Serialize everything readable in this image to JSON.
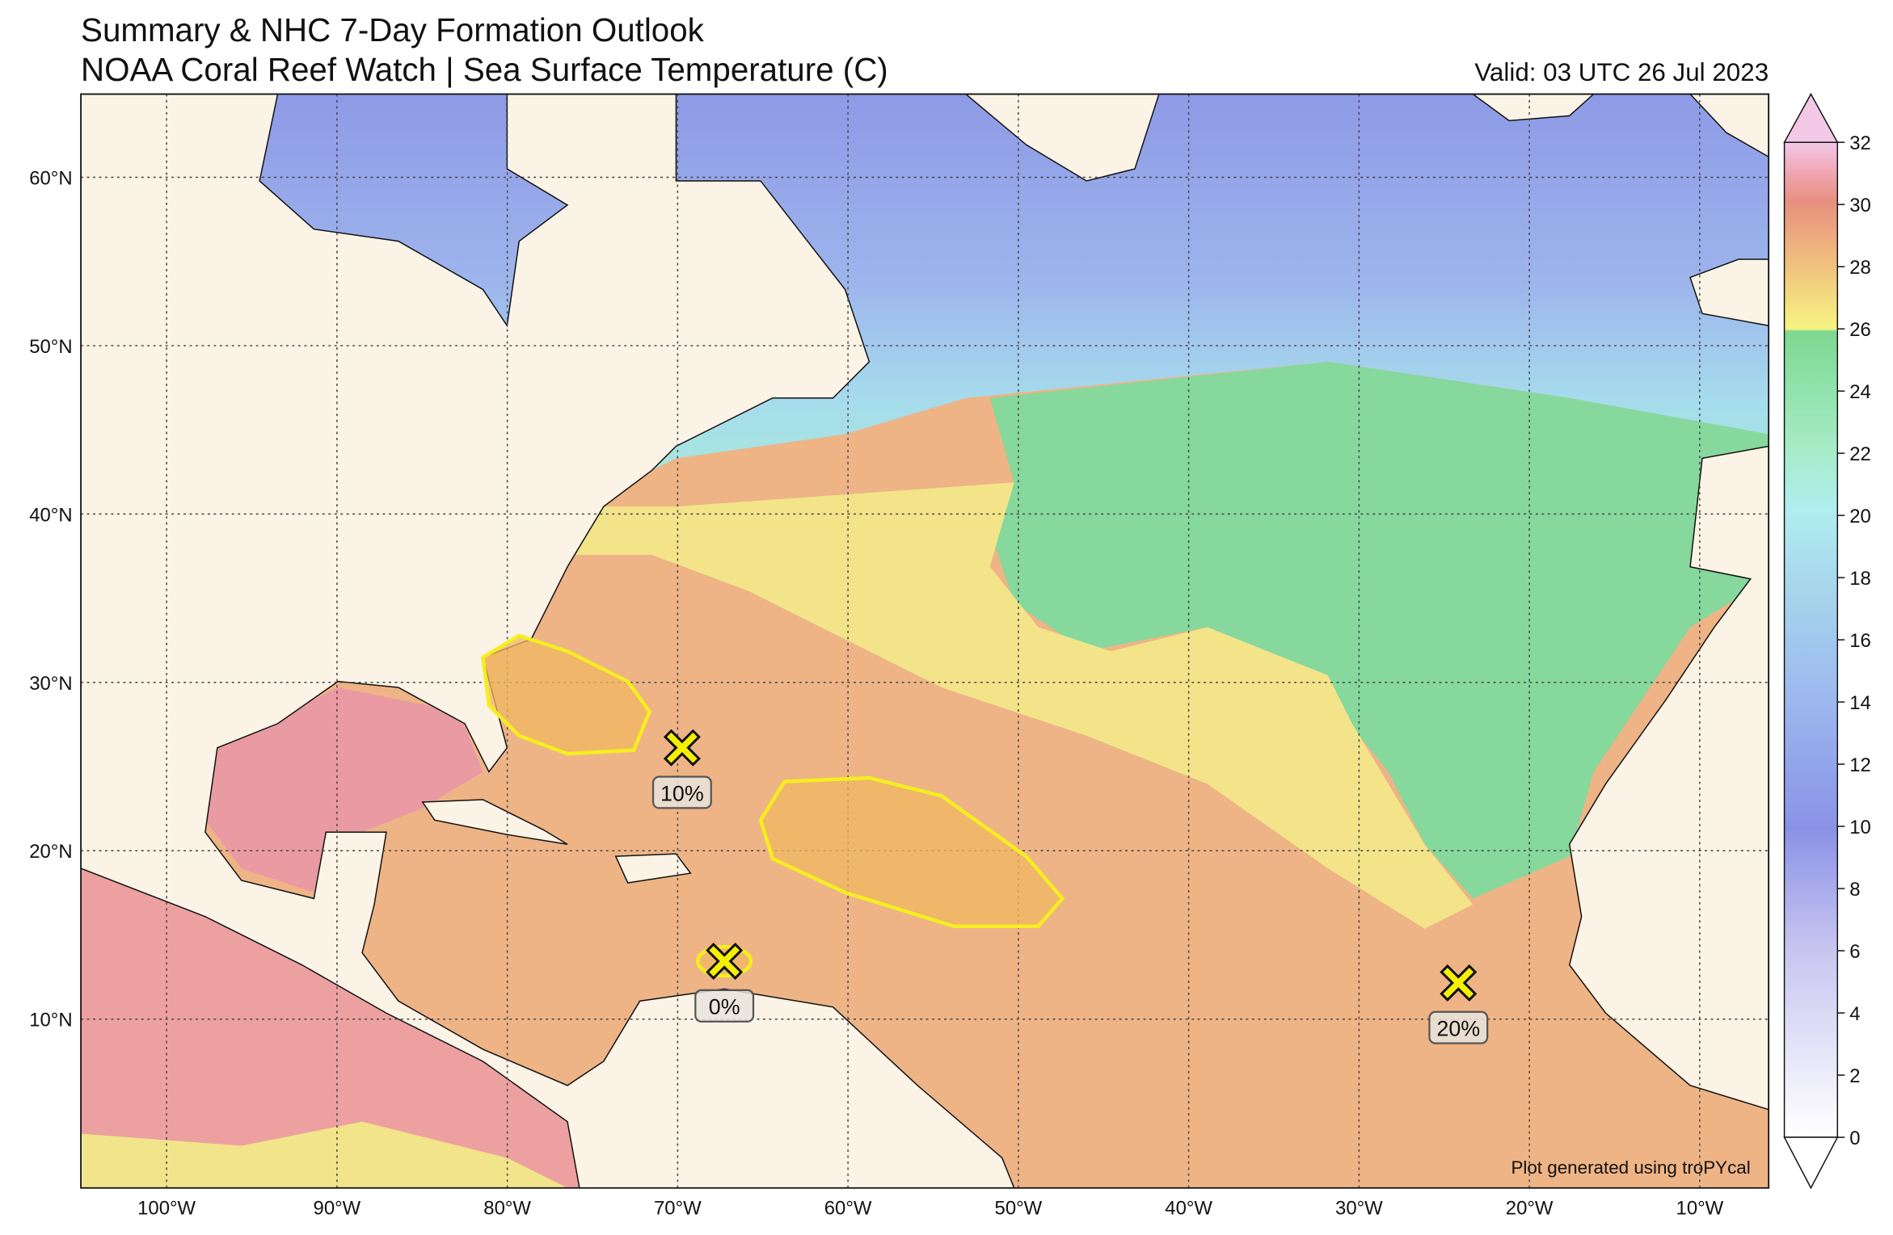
{
  "header": {
    "title": "Summary & NHC 7-Day Formation Outlook",
    "subtitle": "NOAA Coral Reef Watch | Sea Surface Temperature (C)",
    "valid": "Valid: 03 UTC 26 Jul 2023"
  },
  "map": {
    "lat_labels": [
      "60°N",
      "50°N",
      "40°N",
      "30°N",
      "20°N",
      "10°N"
    ],
    "lon_labels": [
      "100°W",
      "90°W",
      "80°W",
      "70°W",
      "60°W",
      "50°W",
      "40°W",
      "30°W",
      "20°W",
      "10°W"
    ],
    "credit": "Plot generated using troPYcal"
  },
  "outlooks": [
    {
      "label": "10%"
    },
    {
      "label": "0%"
    },
    {
      "label": "20%"
    }
  ],
  "colorbar": {
    "range": [
      0,
      32
    ],
    "ticks": [
      0,
      2,
      4,
      6,
      8,
      10,
      12,
      14,
      16,
      18,
      20,
      22,
      24,
      26,
      28,
      30,
      32
    ]
  }
}
